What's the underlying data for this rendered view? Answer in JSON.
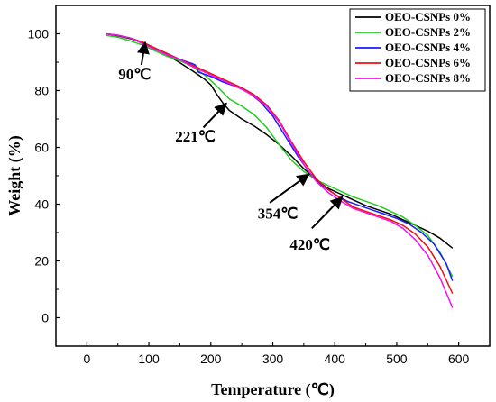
{
  "chart_data": {
    "type": "line",
    "xlabel": "Temperature (℃)",
    "ylabel": "Weight (%)",
    "xlim": [
      -50,
      650
    ],
    "ylim": [
      -10,
      110
    ],
    "x_ticks": [
      0,
      100,
      200,
      300,
      400,
      500,
      600
    ],
    "y_ticks": [
      0,
      20,
      40,
      60,
      80,
      100
    ],
    "grid": false,
    "legend_position": "top-right",
    "series": [
      {
        "name": "OEO-CSNPs 0%",
        "color": "#000000",
        "points": [
          [
            30,
            100
          ],
          [
            50,
            99.3
          ],
          [
            70,
            98.3
          ],
          [
            90,
            97
          ],
          [
            110,
            94.8
          ],
          [
            130,
            92.5
          ],
          [
            150,
            89.8
          ],
          [
            170,
            87
          ],
          [
            190,
            84
          ],
          [
            200,
            82
          ],
          [
            210,
            78.5
          ],
          [
            220,
            75.5
          ],
          [
            230,
            73
          ],
          [
            250,
            70
          ],
          [
            270,
            67.5
          ],
          [
            290,
            64.5
          ],
          [
            310,
            61
          ],
          [
            330,
            57
          ],
          [
            350,
            52.5
          ],
          [
            370,
            48.5
          ],
          [
            390,
            45.5
          ],
          [
            410,
            43.5
          ],
          [
            430,
            41.5
          ],
          [
            450,
            39.5
          ],
          [
            470,
            38
          ],
          [
            490,
            36.5
          ],
          [
            510,
            34.5
          ],
          [
            530,
            32.5
          ],
          [
            550,
            30.5
          ],
          [
            570,
            28
          ],
          [
            590,
            24.5
          ]
        ]
      },
      {
        "name": "OEO-CSNPs 2%",
        "color": "#22cc22",
        "points": [
          [
            30,
            99.5
          ],
          [
            50,
            98.8
          ],
          [
            70,
            97.5
          ],
          [
            90,
            96
          ],
          [
            110,
            94
          ],
          [
            130,
            92
          ],
          [
            150,
            90.5
          ],
          [
            170,
            88.5
          ],
          [
            190,
            85.5
          ],
          [
            210,
            81.5
          ],
          [
            230,
            77
          ],
          [
            250,
            74.5
          ],
          [
            270,
            71.5
          ],
          [
            290,
            67
          ],
          [
            310,
            61
          ],
          [
            330,
            55.5
          ],
          [
            350,
            51.5
          ],
          [
            370,
            48.5
          ],
          [
            390,
            46.5
          ],
          [
            410,
            44.5
          ],
          [
            430,
            42.5
          ],
          [
            450,
            41
          ],
          [
            470,
            39.5
          ],
          [
            490,
            37.5
          ],
          [
            510,
            35.5
          ],
          [
            530,
            32.5
          ],
          [
            550,
            29
          ],
          [
            570,
            23
          ],
          [
            590,
            14.5
          ]
        ]
      },
      {
        "name": "OEO-CSNPs 4%",
        "color": "#1a1aff",
        "points": [
          [
            30,
            100
          ],
          [
            50,
            99.5
          ],
          [
            70,
            98.5
          ],
          [
            90,
            97
          ],
          [
            110,
            95
          ],
          [
            130,
            93
          ],
          [
            150,
            91
          ],
          [
            170,
            89.5
          ],
          [
            175,
            89
          ],
          [
            180,
            86.5
          ],
          [
            200,
            85
          ],
          [
            220,
            83
          ],
          [
            240,
            81.5
          ],
          [
            260,
            79.5
          ],
          [
            280,
            76
          ],
          [
            300,
            71
          ],
          [
            320,
            64
          ],
          [
            340,
            57
          ],
          [
            360,
            51
          ],
          [
            380,
            46.5
          ],
          [
            400,
            43.5
          ],
          [
            420,
            41
          ],
          [
            440,
            39.5
          ],
          [
            460,
            38
          ],
          [
            480,
            36.5
          ],
          [
            500,
            35
          ],
          [
            520,
            33
          ],
          [
            540,
            30
          ],
          [
            560,
            26
          ],
          [
            580,
            19
          ],
          [
            590,
            13
          ]
        ]
      },
      {
        "name": "OEO-CSNPs 6%",
        "color": "#ee1111",
        "points": [
          [
            30,
            100
          ],
          [
            50,
            99.5
          ],
          [
            70,
            98.5
          ],
          [
            90,
            97
          ],
          [
            110,
            95
          ],
          [
            130,
            93
          ],
          [
            150,
            91
          ],
          [
            170,
            89
          ],
          [
            190,
            87
          ],
          [
            210,
            85
          ],
          [
            230,
            83
          ],
          [
            250,
            81
          ],
          [
            270,
            78.5
          ],
          [
            290,
            75
          ],
          [
            310,
            69.5
          ],
          [
            330,
            62
          ],
          [
            350,
            55
          ],
          [
            370,
            49
          ],
          [
            390,
            45
          ],
          [
            410,
            42
          ],
          [
            430,
            39
          ],
          [
            450,
            37.5
          ],
          [
            470,
            36
          ],
          [
            490,
            34.5
          ],
          [
            510,
            32.5
          ],
          [
            530,
            29.5
          ],
          [
            550,
            25
          ],
          [
            570,
            18
          ],
          [
            590,
            8.5
          ]
        ]
      },
      {
        "name": "OEO-CSNPs 8%",
        "color": "#ee11ee",
        "points": [
          [
            30,
            100
          ],
          [
            50,
            99.5
          ],
          [
            70,
            98.5
          ],
          [
            90,
            96.5
          ],
          [
            110,
            94.5
          ],
          [
            130,
            92.5
          ],
          [
            150,
            91
          ],
          [
            170,
            88.5
          ],
          [
            190,
            86.5
          ],
          [
            210,
            84.5
          ],
          [
            230,
            82.5
          ],
          [
            250,
            80.5
          ],
          [
            270,
            78
          ],
          [
            290,
            74.5
          ],
          [
            310,
            69
          ],
          [
            330,
            61.5
          ],
          [
            350,
            54
          ],
          [
            370,
            48
          ],
          [
            390,
            44
          ],
          [
            410,
            41
          ],
          [
            430,
            38.5
          ],
          [
            450,
            37
          ],
          [
            470,
            35.5
          ],
          [
            490,
            34
          ],
          [
            510,
            31.5
          ],
          [
            530,
            27.5
          ],
          [
            550,
            22
          ],
          [
            570,
            14
          ],
          [
            590,
            3.5
          ]
        ]
      }
    ],
    "annotations": [
      {
        "text": "90℃",
        "label_at": [
          77,
          84
        ],
        "arrow_from": [
          88,
          89
        ],
        "arrow_to": [
          94,
          97
        ]
      },
      {
        "text": "221℃",
        "label_at": [
          175,
          62
        ],
        "arrow_from": [
          188,
          67
        ],
        "arrow_to": [
          225,
          75.5
        ]
      },
      {
        "text": "354℃",
        "label_at": [
          308,
          35
        ],
        "arrow_from": [
          295,
          40.5
        ],
        "arrow_to": [
          358,
          50.5
        ]
      },
      {
        "text": "420℃",
        "label_at": [
          360,
          24
        ],
        "arrow_from": [
          363,
          31.5
        ],
        "arrow_to": [
          412,
          42.5
        ]
      }
    ]
  }
}
